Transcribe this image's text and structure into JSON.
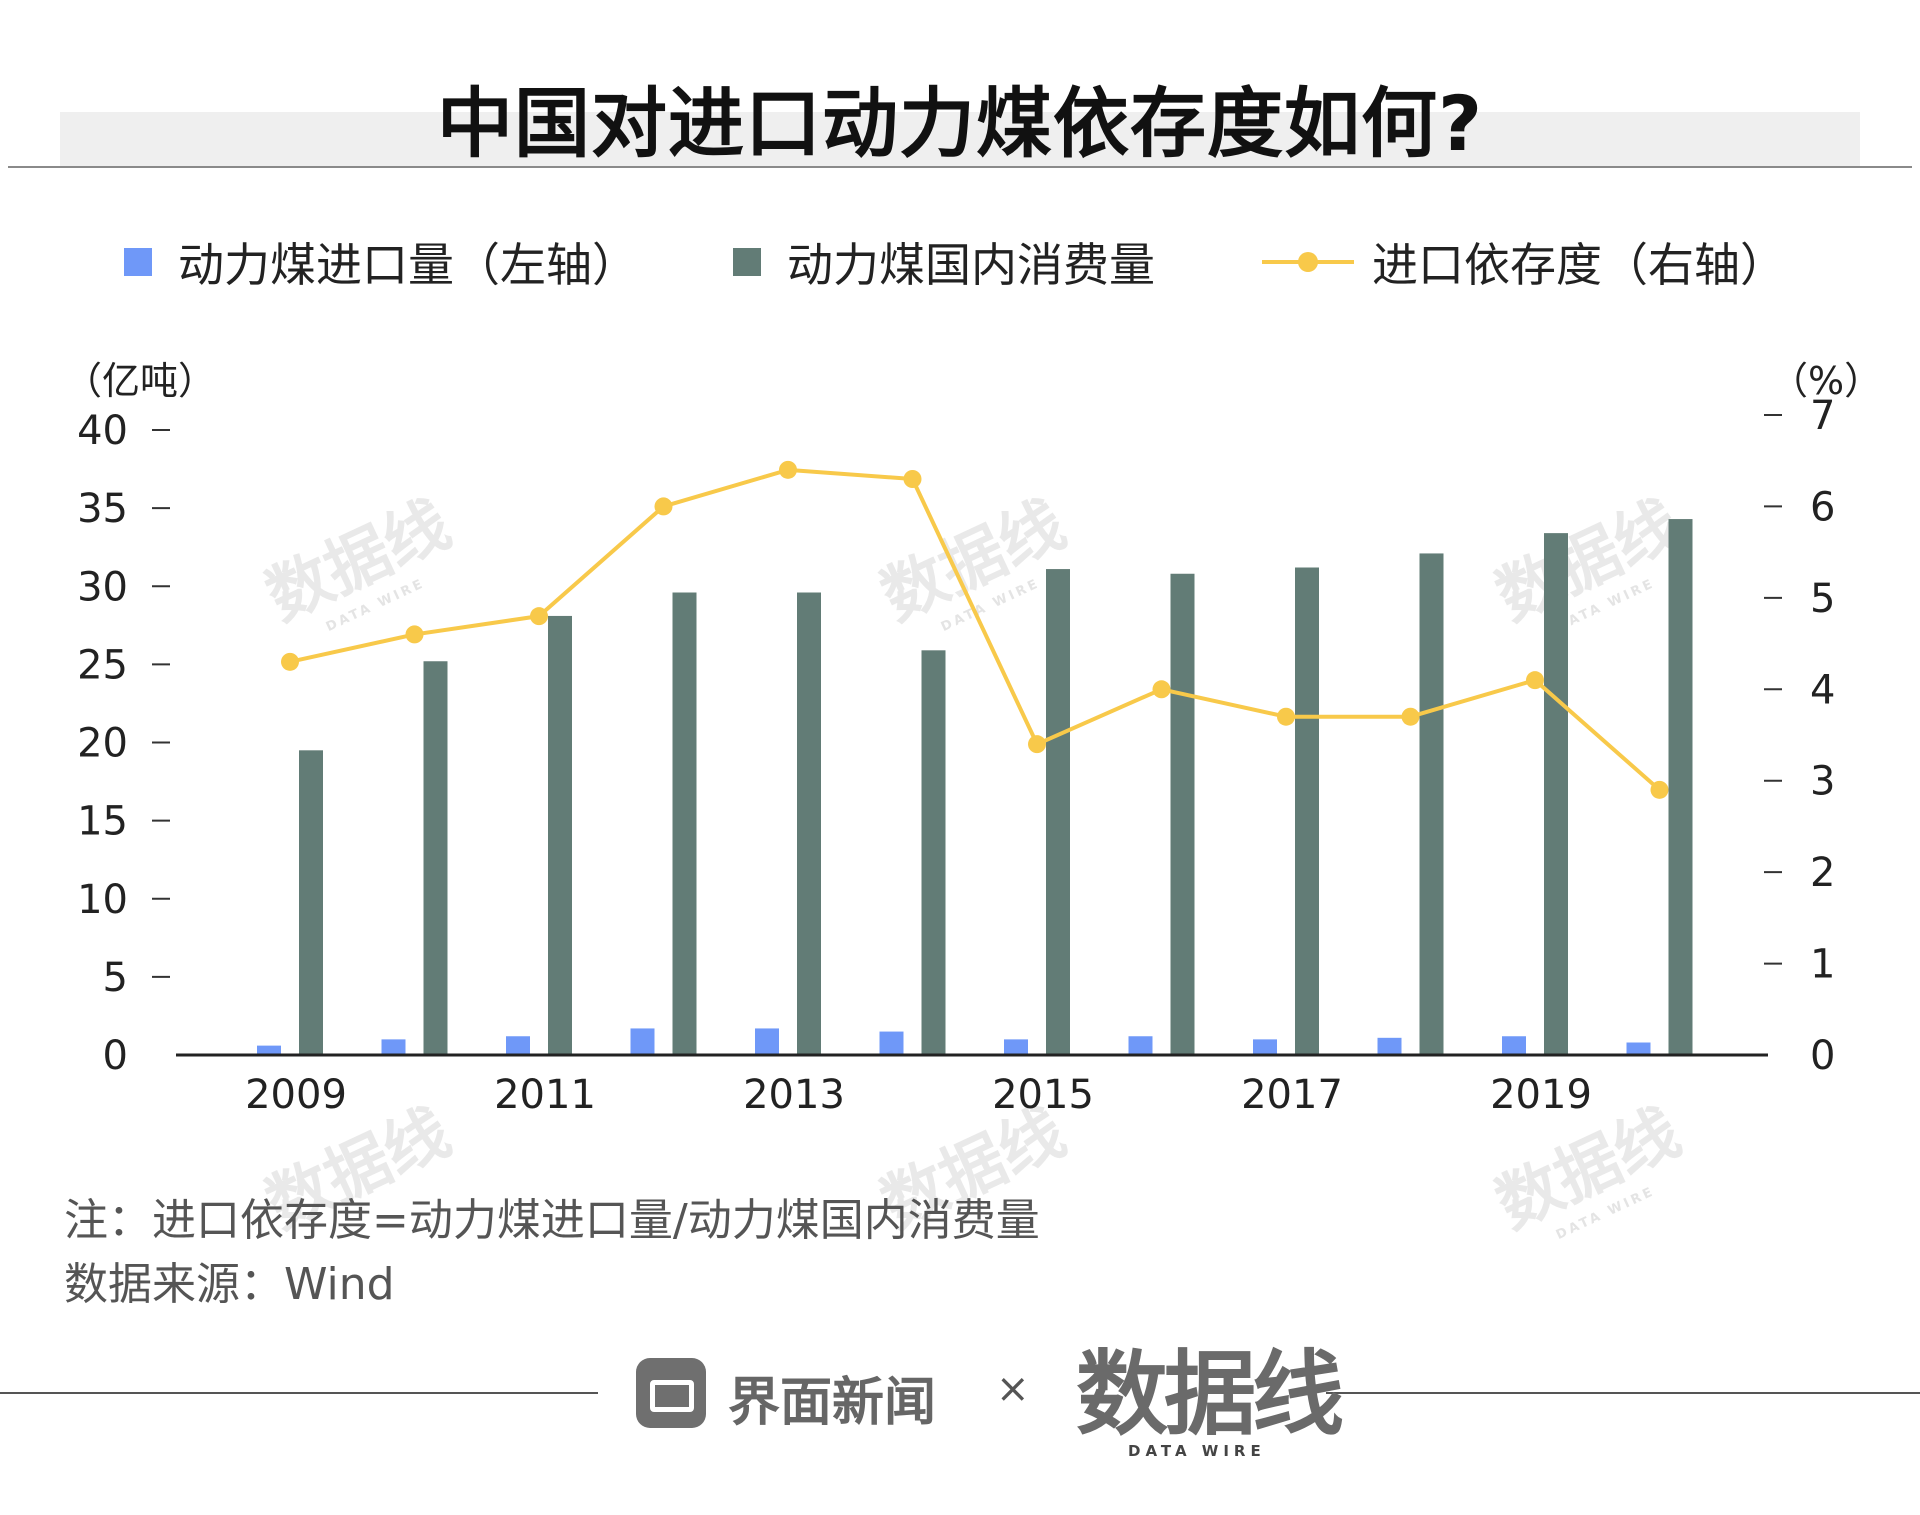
{
  "title": "中国对进口动力煤依存度如何?",
  "legend": [
    {
      "label": "动力煤进口量（左轴）",
      "color": "#6f98f8",
      "kind": "bar"
    },
    {
      "label": "动力煤国内消费量",
      "color": "#627c76",
      "kind": "bar"
    },
    {
      "label": "进口依存度（右轴）",
      "color": "#f8c94a",
      "kind": "line"
    }
  ],
  "axis_units": {
    "left": "（亿吨）",
    "right": "（%）"
  },
  "chart_data": {
    "type": "bar",
    "x": [
      2009,
      2010,
      2011,
      2012,
      2013,
      2014,
      2015,
      2016,
      2017,
      2018,
      2019,
      2020
    ],
    "x_tick_labels": [
      "2009",
      "2011",
      "2013",
      "2015",
      "2017",
      "2019"
    ],
    "series": [
      {
        "name": "动力煤进口量（左轴）",
        "type": "bar",
        "axis": "left",
        "color": "#6f98f8",
        "values": [
          0.6,
          1.0,
          1.2,
          1.7,
          1.7,
          1.5,
          1.0,
          1.2,
          1.0,
          1.1,
          1.2,
          0.8
        ]
      },
      {
        "name": "动力煤国内消费量",
        "type": "bar",
        "axis": "left",
        "color": "#627c76",
        "values": [
          19.5,
          25.2,
          28.1,
          29.6,
          29.6,
          25.9,
          31.1,
          30.8,
          31.2,
          32.1,
          33.4,
          34.3
        ]
      },
      {
        "name": "进口依存度（右轴）",
        "type": "line",
        "axis": "right",
        "color": "#f8c94a",
        "values": [
          4.3,
          4.6,
          4.8,
          6.0,
          6.4,
          6.3,
          3.4,
          4.0,
          3.7,
          3.7,
          4.1,
          2.9
        ]
      }
    ],
    "y_left": {
      "range": [
        0,
        40
      ],
      "ticks": [
        0,
        5,
        10,
        15,
        20,
        25,
        30,
        35,
        40
      ]
    },
    "y_right": {
      "range": [
        0,
        7
      ],
      "ticks": [
        0,
        1,
        2,
        3,
        4,
        5,
        6,
        7
      ]
    },
    "grid": false,
    "legend_position": "top"
  },
  "notes": {
    "note": "注：进口依存度=动力煤进口量/动力煤国内消费量",
    "source": "数据来源：Wind"
  },
  "footer": {
    "brand": "界面新闻",
    "times": "×",
    "partner": "数据线",
    "partner_sub": "DATA WIRE"
  }
}
